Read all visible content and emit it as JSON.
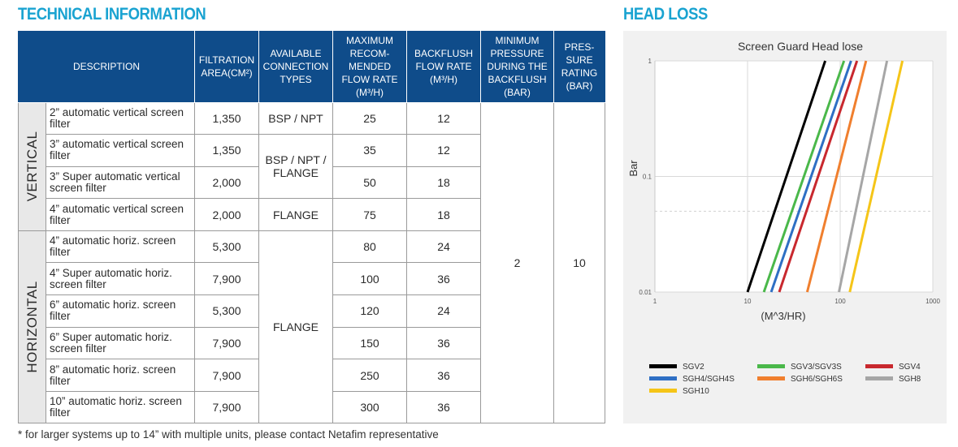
{
  "technical_information": {
    "title": "TECHNICAL INFORMATION",
    "headers": {
      "description": "DESCRIPTION",
      "filtration_area": "FILTRATION AREA(CM²)",
      "connection_types": "AVAILABLE CONNECTION TYPES",
      "max_flow": "MAXIMUM RECOM-MENDED FLOW RATE (M³/H)",
      "backflush_flow": "BACKFLUSH FLOW RATE (M³/H)",
      "min_pressure": "MINIMUM PRESSURE DURING THE BACKFLUSH (BAR)",
      "pressure_rating": "PRES-SURE RATING (BAR)"
    },
    "groups": {
      "vertical": "VERTICAL",
      "horizontal": "HORIZONTAL"
    },
    "rows": [
      {
        "description": "2” automatic vertical screen filter",
        "area": "1,350",
        "max_flow": "25",
        "backflush": "12"
      },
      {
        "description": "3” automatic vertical screen filter",
        "area": "1,350",
        "max_flow": "35",
        "backflush": "12"
      },
      {
        "description": "3” Super automatic vertical screen filter",
        "area": "2,000",
        "max_flow": "50",
        "backflush": "18"
      },
      {
        "description": "4” automatic vertical screen filter",
        "area": "2,000",
        "max_flow": "75",
        "backflush": "18"
      },
      {
        "description": "4” automatic horiz. screen filter",
        "area": "5,300",
        "max_flow": "80",
        "backflush": "24"
      },
      {
        "description": "4” Super automatic horiz. screen filter",
        "area": "7,900",
        "max_flow": "100",
        "backflush": "36"
      },
      {
        "description": "6” automatic horiz. screen filter",
        "area": "5,300",
        "max_flow": "120",
        "backflush": "24"
      },
      {
        "description": "6” Super automatic horiz. screen filter",
        "area": "7,900",
        "max_flow": "150",
        "backflush": "36"
      },
      {
        "description": "8” automatic horiz. screen filter",
        "area": "7,900",
        "max_flow": "250",
        "backflush": "36"
      },
      {
        "description": "10” automatic horiz. screen filter",
        "area": "7,900",
        "max_flow": "300",
        "backflush": "36"
      }
    ],
    "connections": [
      "BSP / NPT",
      "BSP / NPT / FLANGE",
      "FLANGE",
      "FLANGE"
    ],
    "min_pressure_value": "2",
    "pressure_rating_value": "10",
    "footnote": "* for larger systems up to 14” with multiple units, please contact Netafim representative"
  },
  "head_loss": {
    "title": "HEAD LOSS"
  },
  "chart_data": {
    "type": "line",
    "title": "Screen Guard Head lose",
    "xlabel": "(M^3/HR)",
    "ylabel": "Bar",
    "x_scale": "log",
    "y_scale": "log",
    "xlim": [
      1,
      1000
    ],
    "ylim": [
      0.01,
      1
    ],
    "x_ticks": [
      "1",
      "10",
      "100",
      "1000"
    ],
    "y_ticks": [
      "1",
      "0.1",
      "0.01"
    ],
    "grid": true,
    "legend_position": "bottom",
    "series": [
      {
        "name": "SGV2",
        "color": "#000000",
        "x": [
          10,
          69
        ],
        "y": [
          0.01,
          1
        ]
      },
      {
        "name": "SGV3/SGV3S",
        "color": "#4ab84a",
        "x": [
          15,
          110
        ],
        "y": [
          0.01,
          1
        ]
      },
      {
        "name": "SGV4",
        "color": "#c8282e",
        "x": [
          22,
          152
        ],
        "y": [
          0.01,
          1
        ]
      },
      {
        "name": "SGH4/SGH4S",
        "color": "#2e6fc4",
        "x": [
          18,
          131
        ],
        "y": [
          0.01,
          1
        ]
      },
      {
        "name": "SGH6/SGH6S",
        "color": "#f07f2e",
        "x": [
          44,
          190
        ],
        "y": [
          0.01,
          1
        ]
      },
      {
        "name": "SGH8",
        "color": "#a6a6a6",
        "x": [
          97,
          320
        ],
        "y": [
          0.01,
          1
        ]
      },
      {
        "name": "SGH10",
        "color": "#f5c518",
        "x": [
          127,
          470
        ],
        "y": [
          0.01,
          1
        ]
      }
    ]
  }
}
